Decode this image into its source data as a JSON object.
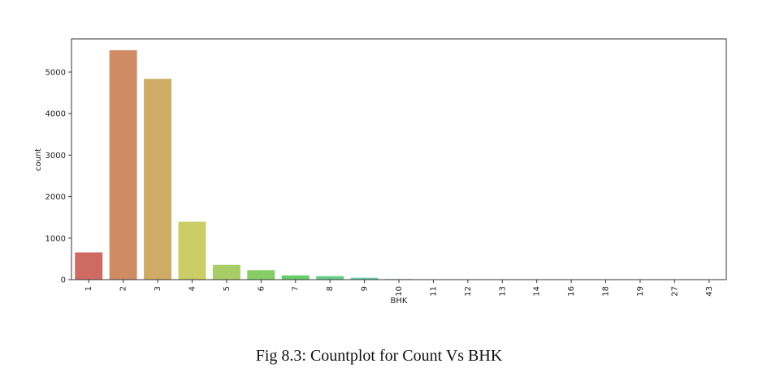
{
  "caption": "Fig 8.3: Countplot for Count Vs BHK",
  "chart_data": {
    "type": "bar",
    "xlabel": "BHK",
    "ylabel": "count",
    "categories": [
      "1",
      "2",
      "3",
      "4",
      "5",
      "6",
      "7",
      "8",
      "9",
      "10",
      "11",
      "12",
      "13",
      "14",
      "16",
      "18",
      "19",
      "27",
      "43"
    ],
    "values": [
      655,
      5528,
      4838,
      1395,
      356,
      228,
      102,
      84,
      45,
      14,
      3,
      2,
      1,
      1,
      1,
      1,
      1,
      1,
      1
    ],
    "colors": [
      "#cf6a63",
      "#cf8b64",
      "#cfab65",
      "#cbcd66",
      "#a9cd66",
      "#86cd65",
      "#66cd67",
      "#66cd88",
      "#66cea9",
      "#66cbcd",
      "#66aacd",
      "#6689ce",
      "#6667cd",
      "#8767ce",
      "#a866cd",
      "#ca66ce",
      "#ce66ad",
      "#ce668b",
      "#ce666a"
    ],
    "ylim": [
      0,
      5800
    ],
    "yticks": [
      0,
      1000,
      2000,
      3000,
      4000,
      5000
    ],
    "grid": false
  }
}
